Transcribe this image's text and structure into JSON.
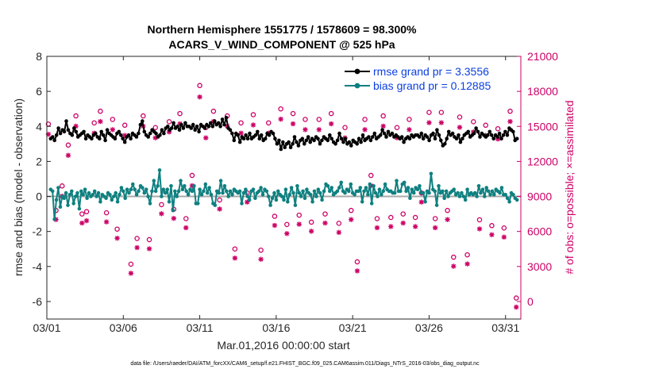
{
  "chart_data": {
    "type": "line",
    "title_line1": "Northern Hemisphere 1551775 / 1578609 = 98.300%",
    "title_line2": "ACARS_V_WIND_COMPONENT @ 525 hPa",
    "xlabel": "Mar.01,2016 00:00:00 start",
    "ylabel_left": "rmse and bias (model - observation)",
    "ylabel_right": "# of obs: o=possible; ×=assimilated",
    "footnote": "data file: /Users/raeder/DAI/ATM_forcXX/CAM6_setup/f.e21.FHIST_BGC.f09_025.CAM6assim.011/Diags_NTrS_2016-03/obs_diag_output.nc",
    "x_ticks": [
      1,
      6,
      11,
      16,
      21,
      26,
      31
    ],
    "x_tick_labels": [
      "03/01",
      "03/06",
      "03/11",
      "03/16",
      "03/21",
      "03/26",
      "03/31"
    ],
    "xlim": [
      1,
      32
    ],
    "ylim_left": [
      -7,
      8
    ],
    "yticks_left": [
      -6,
      -4,
      -2,
      0,
      2,
      4,
      6,
      8
    ],
    "ylim_right": [
      -1500,
      21000
    ],
    "yticks_right": [
      0,
      3000,
      6000,
      9000,
      12000,
      15000,
      18000,
      21000
    ],
    "legend": [
      "rmse grand pr = 3.3556",
      "bias grand pr = 0.12885"
    ],
    "colors": {
      "rmse": "#000000",
      "bias": "#0f8080",
      "obs": "#cc0066",
      "zero_line": "#a9a9a9",
      "legend_text": "#0a3fe0"
    },
    "series": [
      {
        "name": "rmse",
        "values": [
          3.3,
          3.4,
          3.2,
          3.5,
          3.9,
          3.6,
          3.8,
          3.7,
          4.3,
          3.8,
          3.6,
          3.5,
          3.9,
          3.7,
          3.4,
          3.5,
          3.6,
          3.7,
          3.3,
          3.5,
          3.4,
          3.3,
          3.5,
          3.6,
          3.4,
          3.3,
          3.7,
          3.5,
          3.2,
          3.8,
          3.6,
          3.5,
          3.4,
          3.3,
          3.6,
          3.7,
          3.5,
          3.3,
          3.1,
          3.4,
          3.5,
          3.3,
          3.6,
          3.5,
          3.4,
          3.6,
          4.1,
          4.3,
          3.7,
          3.5,
          3.4,
          3.6,
          3.8,
          3.7,
          3.6,
          3.4,
          3.5,
          3.8,
          3.6,
          3.9,
          4.0,
          3.8,
          3.9,
          4.2,
          3.9,
          4.0,
          3.8,
          4.1,
          3.9,
          4.2,
          4.0,
          4.0,
          3.9,
          4.1,
          3.8,
          4.0,
          3.7,
          4.1,
          4.0,
          3.9,
          4.1,
          4.0,
          4.2,
          4.0,
          4.3,
          4.1,
          4.2,
          4.0,
          4.4,
          4.1,
          4.5,
          3.9,
          3.8,
          3.6,
          3.2,
          3.6,
          3.5,
          3.1,
          3.4,
          3.3,
          3.5,
          3.3,
          3.6,
          3.3,
          3.4,
          3.5,
          3.7,
          3.3,
          3.5,
          3.2,
          3.3,
          3.6,
          3.5,
          3.7,
          3.6,
          3.3,
          3.0,
          3.2,
          2.7,
          3.1,
          2.8,
          3.0,
          3.1,
          2.8,
          3.0,
          3.4,
          3.1,
          2.9,
          3.2,
          3.3,
          3.0,
          3.2,
          3.4,
          3.1,
          3.3,
          3.2,
          3.4,
          3.3,
          3.0,
          3.2,
          3.4,
          3.3,
          3.2,
          3.5,
          3.3,
          3.1,
          3.0,
          3.2,
          3.6,
          3.3,
          3.1,
          3.3,
          3.0,
          3.1,
          2.9,
          3.2,
          3.1,
          3.0,
          3.3,
          3.1,
          3.5,
          3.2,
          3.3,
          3.4,
          3.2,
          3.4,
          3.6,
          3.3,
          3.4,
          3.5,
          3.8,
          3.6,
          3.4,
          3.7,
          3.5,
          3.6,
          3.4,
          3.5,
          3.4,
          3.3,
          3.4,
          3.1,
          3.3,
          3.4,
          3.3,
          3.5,
          3.4,
          3.5,
          3.5,
          3.4,
          3.6,
          3.3,
          3.5,
          3.4,
          3.2,
          3.5,
          3.6,
          3.3,
          3.8,
          3.5,
          3.2,
          2.9,
          3.0,
          3.3,
          3.7,
          3.5,
          3.6,
          3.4,
          3.3,
          3.5,
          3.1,
          3.3,
          3.5,
          3.6,
          3.7,
          3.4,
          3.5,
          3.6,
          3.9,
          3.7,
          3.4,
          3.6,
          3.5,
          3.4,
          3.5,
          3.7,
          3.5,
          3.3,
          3.5,
          3.4,
          3.6,
          3.3,
          3.5,
          3.7,
          3.5,
          3.9,
          3.8,
          3.7,
          3.2,
          3.3
        ]
      },
      {
        "name": "bias",
        "values": [
          0.4,
          0.3,
          -1.3,
          -0.2,
          0.5,
          -0.6,
          0.0,
          -0.1,
          0.2,
          -0.5,
          0.1,
          0.3,
          -0.4,
          0.0,
          0.2,
          -0.7,
          0.3,
          0.1,
          0.4,
          -0.1,
          0.2,
          0.0,
          0.1,
          0.3,
          0.0,
          0.2,
          -0.3,
          0.1,
          0.0,
          -0.1,
          0.2,
          0.1,
          -0.2,
          0.0,
          0.2,
          -0.3,
          0.1,
          0.5,
          0.3,
          -0.1,
          0.4,
          0.2,
          0.4,
          0.7,
          0.4,
          0.1,
          0.3,
          0.6,
          0.5,
          0.2,
          0.4,
          0.0,
          -0.4,
          0.3,
          0.9,
          0.3,
          0.6,
          1.5,
          0.0,
          0.4,
          0.2,
          0.4,
          -0.3,
          0.6,
          -0.8,
          0.3,
          0.0,
          0.3,
          0.9,
          0.4,
          0.6,
          0.3,
          0.1,
          0.4,
          0.3,
          0.6,
          -0.4,
          -0.4,
          0.4,
          0.1,
          0.3,
          0.7,
          0.2,
          0.5,
          0.1,
          -0.4,
          -0.5,
          0.3,
          0.2,
          0.9,
          0.2,
          0.6,
          0.3,
          0.0,
          0.3,
          0.1,
          0.4,
          0.3,
          0.2,
          0.3,
          -0.4,
          0.2,
          0.4,
          0.0,
          -0.2,
          0.3,
          0.4,
          -0.1,
          0.2,
          0.3,
          0.5,
          0.1,
          0.4,
          0.3,
          0.0,
          -0.5,
          -0.1,
          0.2,
          -0.2,
          0.3,
          0.1,
          0.0,
          -0.2,
          0.4,
          -0.3,
          0.1,
          0.5,
          0.2,
          -0.5,
          0.6,
          0.2,
          0.0,
          0.3,
          -0.1,
          0.4,
          0.2,
          0.1,
          -0.3,
          0.3,
          0.0,
          0.4,
          0.2,
          -0.2,
          0.3,
          0.7,
          0.6,
          0.3,
          0.5,
          0.1,
          0.2,
          0.3,
          0.5,
          0.8,
          0.3,
          0.2,
          0.4,
          0.3,
          0.7,
          0.2,
          0.1,
          0.3,
          0.3,
          0.5,
          -0.3,
          0.3,
          0.5,
          0.1,
          0.7,
          -0.4,
          0.6,
          0.2,
          0.0,
          0.4,
          0.1,
          0.3,
          0.7,
          0.4,
          0.3,
          0.3,
          0.2,
          0.2,
          0.9,
          0.3,
          0.3,
          0.7,
          0.8,
          0.3,
          0.5,
          -0.1,
          0.4,
          0.2,
          0.5,
          0.4,
          0.6,
          0.2,
          0.2,
          -0.3,
          0.3,
          0.2,
          1.3,
          0.4,
          0.3,
          -0.5,
          0.6,
          0.2,
          0.3,
          -0.1,
          0.3,
          0.0,
          0.2,
          0.3,
          0.4,
          0.1,
          0.2,
          0.0,
          0.2,
          0.0,
          -0.2,
          0.4,
          0.1,
          0.2,
          0.1,
          0.2,
          0.0,
          0.6,
          0.2,
          0.4,
          0.0,
          0.5,
          0.3,
          0.1,
          0.3,
          0.1,
          0.4,
          0.3,
          0.2,
          0.5,
          0.1,
          0.1,
          -0.1,
          -0.3,
          0.2,
          0.1,
          -0.1,
          -0.2
        ]
      }
    ],
    "obs_daily_x": [
      1.1,
      1.6,
      2.0,
      2.4,
      2.9,
      3.3,
      3.6,
      4.1,
      4.5,
      4.9,
      5.3,
      5.6,
      6.1,
      6.5,
      6.9,
      7.3,
      7.7,
      8.1,
      8.5,
      9.0,
      9.3,
      9.7,
      10.1,
      10.5,
      11.0,
      11.4,
      11.9,
      12.3,
      12.8,
      13.3,
      13.7,
      14.1,
      14.5,
      15.0,
      15.5,
      15.9,
      16.3,
      16.7,
      17.1,
      17.5,
      17.9,
      18.3,
      18.8,
      19.2,
      19.6,
      20.1,
      20.5,
      20.9,
      21.3,
      21.8,
      22.2,
      22.6,
      23.0,
      23.5,
      23.9,
      24.3,
      24.7,
      25.1,
      25.5,
      26.0,
      26.4,
      26.8,
      27.2,
      27.6,
      28.0,
      28.5,
      28.9,
      29.3,
      29.7,
      30.1,
      30.5,
      30.9,
      31.3,
      31.7
    ],
    "obs_possible": [
      15200,
      7800,
      9900,
      13400,
      15900,
      7500,
      7700,
      15300,
      16300,
      7600,
      15600,
      6200,
      15100,
      3200,
      5400,
      15900,
      5300,
      14900,
      8300,
      15400,
      7900,
      16100,
      7100,
      10800,
      18500,
      14900,
      16300,
      8700,
      15900,
      4500,
      15300,
      9300,
      16000,
      4400,
      15300,
      7300,
      16500,
      6600,
      16100,
      7400,
      15600,
      6800,
      15600,
      7500,
      16100,
      6700,
      14900,
      7800,
      3400,
      15600,
      10800,
      7100,
      15900,
      7200,
      14900,
      7500,
      15600,
      7200,
      9300,
      16200,
      7100,
      16200,
      7800,
      3800,
      15800,
      4000,
      15400,
      7000,
      15100,
      6500,
      14800,
      6300,
      16300,
      300
    ],
    "obs_assimilated": [
      15000,
      7700,
      9700,
      13200,
      15700,
      7400,
      7600,
      15100,
      16100,
      7500,
      15400,
      6100,
      14900,
      3100,
      5300,
      15700,
      5200,
      14700,
      8200,
      15200,
      7800,
      15900,
      7000,
      10600,
      18200,
      14700,
      16100,
      8600,
      15700,
      4400,
      15100,
      9200,
      15800,
      4300,
      15100,
      7200,
      16300,
      6500,
      15900,
      7300,
      15400,
      6700,
      15400,
      7400,
      15900,
      6600,
      14700,
      7700,
      3300,
      15400,
      10600,
      7000,
      15700,
      7100,
      14700,
      7400,
      15400,
      7100,
      9200,
      16000,
      7000,
      16000,
      7700,
      3700,
      15600,
      3900,
      15200,
      6900,
      14900,
      6400,
      14600,
      6200,
      16100,
      200
    ]
  }
}
